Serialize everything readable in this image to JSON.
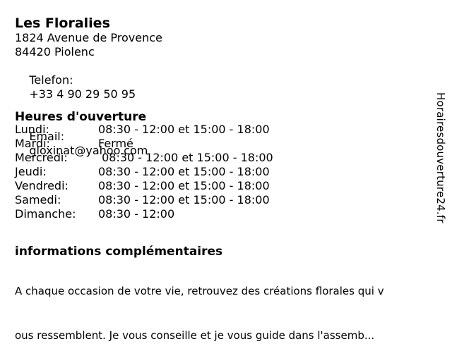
{
  "business": {
    "name": "Les Floralies",
    "address_line1": "1824 Avenue de Provence",
    "address_line2": "84420 Piolenc",
    "phone_label": "Telefon:",
    "phone": "+33 4 90 29 50 95",
    "email_label": "Email:",
    "email": "gloxinat@yahoo.com"
  },
  "hours": {
    "title": "Heures d'ouverture",
    "rows": [
      {
        "day": "Lundi:",
        "time": "08:30 - 12:00 et 15:00 - 18:00"
      },
      {
        "day": "Mardi:",
        "time": "Fermé"
      },
      {
        "day": "Mercredi:",
        "time": " 08:30 - 12:00 et 15:00 - 18:00"
      },
      {
        "day": "Jeudi:",
        "time": "08:30 - 12:00 et 15:00 - 18:00"
      },
      {
        "day": "Vendredi:",
        "time": "08:30 - 12:00 et 15:00 - 18:00"
      },
      {
        "day": "Samedi:",
        "time": "08:30 - 12:00 et 15:00 - 18:00"
      },
      {
        "day": "Dimanche:",
        "time": "08:30 - 12:00"
      }
    ]
  },
  "additional_info": {
    "title": "informations complémentaires",
    "lines": [
      "A chaque occasion de votre vie, retrouvez des créations florales qui v",
      "ous ressemblent. Je vous conseille et je vous guide dans l'assemb..."
    ]
  },
  "watermark": {
    "text": "Horairesdouverture24.fr"
  },
  "colors": {
    "background": "#ffffff",
    "text": "#000000"
  }
}
